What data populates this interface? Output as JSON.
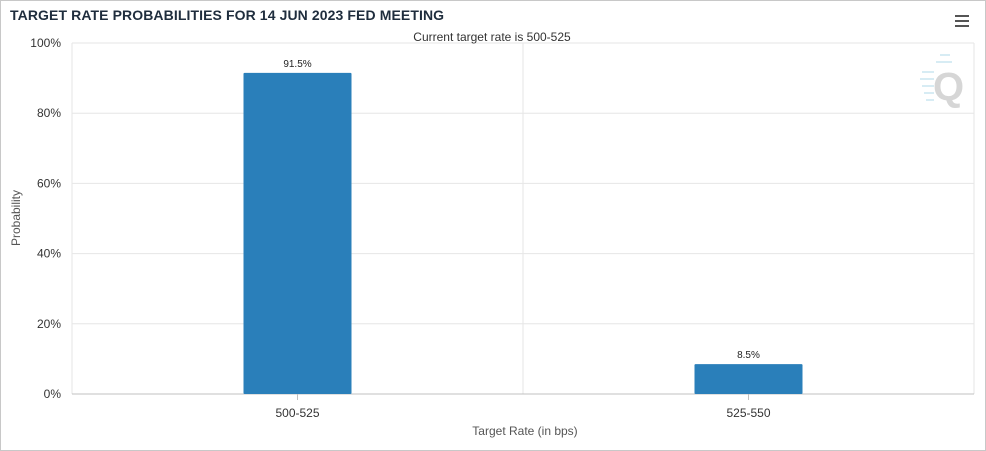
{
  "header": {
    "title": "TARGET RATE PROBABILITIES FOR 14 JUN 2023 FED MEETING",
    "menu_icon": "hamburger-menu-icon",
    "logo_text": "Q"
  },
  "chart_data": {
    "type": "bar",
    "title": "TARGET RATE PROBABILITIES FOR 14 JUN 2023 FED MEETING",
    "subtitle": "Current target rate is 500-525",
    "categories": [
      "500-525",
      "525-550"
    ],
    "values": [
      91.5,
      8.5
    ],
    "data_labels": [
      "91.5%",
      "8.5%"
    ],
    "xlabel": "Target Rate (in bps)",
    "ylabel": "Probability",
    "ylim": [
      0,
      100
    ],
    "yticks": [
      0,
      20,
      40,
      60,
      80,
      100
    ],
    "ytick_labels": [
      "0%",
      "20%",
      "40%",
      "60%",
      "80%",
      "100%"
    ],
    "grid": true,
    "legend": "none",
    "colors": {
      "bar": "#2a7fba",
      "grid": "#e6e6e6",
      "axis": "#c0c0c0"
    }
  }
}
